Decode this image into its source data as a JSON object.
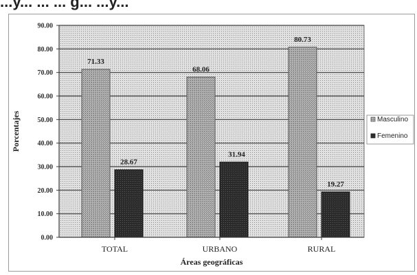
{
  "page": {
    "header_fragment": "...y... ... ... g... ...y..."
  },
  "chart_data": {
    "type": "bar",
    "title": "",
    "xlabel": "Áreas geográficas",
    "ylabel": "Porcentajes",
    "ylim": [
      0,
      90
    ],
    "y_ticks": [
      "0.00",
      "10.00",
      "20.00",
      "30.00",
      "40.00",
      "50.00",
      "60.00",
      "70.00",
      "80.00",
      "90.00"
    ],
    "categories": [
      "TOTAL",
      "URBANO",
      "RURAL"
    ],
    "series": [
      {
        "name": "Masculino",
        "values": [
          71.33,
          68.06,
          80.73
        ],
        "labels": [
          "71.33",
          "68.06",
          "80.73"
        ],
        "color": "#a9a9a9",
        "pattern": "light-dots"
      },
      {
        "name": "Femenino",
        "values": [
          28.67,
          31.94,
          19.27
        ],
        "labels": [
          "28.67",
          "31.94",
          "19.27"
        ],
        "color": "#2b2b2b",
        "pattern": "dark-dots"
      }
    ],
    "grid": true,
    "legend_position": "right",
    "plot_background": "#d9d9d9"
  }
}
